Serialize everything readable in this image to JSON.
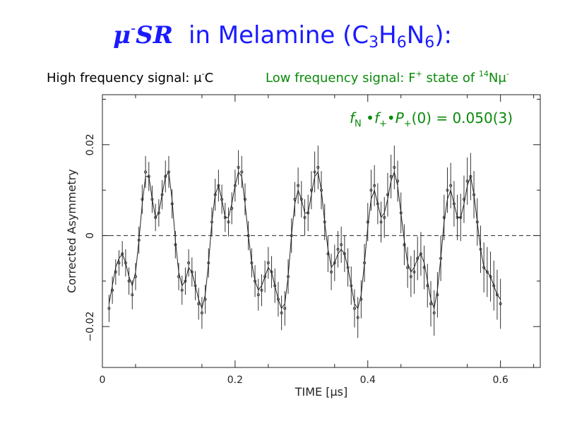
{
  "header": {
    "title_mu": "μ",
    "title_minus": "-",
    "title_sr": "SR",
    "title_rest_1": "in Melamine (C",
    "title_sub_1": "3",
    "title_rest_2": "H",
    "title_sub_2": "6",
    "title_rest_3": "N",
    "title_sub_3": "6",
    "title_rest_4": "):",
    "high_label": "High frequency signal:  μ",
    "high_sup": "-",
    "high_tail": "C",
    "low_label": "Low frequency signal:  F",
    "low_sup_plus": "+",
    "low_mid": " state of ",
    "low_sup_14": "14",
    "low_tail": "Nμ",
    "low_sup_minus": "-",
    "formula": {
      "f": "f",
      "sub_N": "N",
      "dot1": " •",
      "f2": "f",
      "sub_plus1": "+",
      "dot2": "•",
      "P": "P",
      "sub_plus2": "+",
      "tail": "(0) = 0.050(3)"
    }
  },
  "colors": {
    "title_blue": "#1a1aff",
    "green": "#0a8a0a",
    "axis": "#222222"
  },
  "chart_data": {
    "type": "scatter",
    "xlabel": "TIME  [μs]",
    "ylabel": "Corrected Asymmetry",
    "xlim": [
      0,
      0.66
    ],
    "ylim": [
      -0.029,
      0.031
    ],
    "xticks": [
      0,
      0.2,
      0.4,
      0.6
    ],
    "xtick_labels": [
      "0",
      "0.2",
      "0.4",
      "0.6"
    ],
    "yticks": [
      -0.02,
      0,
      0.02
    ],
    "ytick_labels": [
      "−0.02",
      "0",
      "0.02"
    ],
    "zero_line": "dashed",
    "series": [
      {
        "style": "points-with-errorbars",
        "x": [
          0.01,
          0.015,
          0.02,
          0.025,
          0.03,
          0.035,
          0.04,
          0.045,
          0.05,
          0.055,
          0.06,
          0.065,
          0.07,
          0.075,
          0.08,
          0.085,
          0.09,
          0.095,
          0.1,
          0.105,
          0.11,
          0.115,
          0.12,
          0.125,
          0.13,
          0.135,
          0.14,
          0.145,
          0.15,
          0.155,
          0.16,
          0.165,
          0.17,
          0.175,
          0.18,
          0.185,
          0.19,
          0.195,
          0.2,
          0.205,
          0.21,
          0.215,
          0.22,
          0.225,
          0.23,
          0.235,
          0.24,
          0.245,
          0.25,
          0.255,
          0.26,
          0.265,
          0.27,
          0.275,
          0.28,
          0.285,
          0.29,
          0.295,
          0.3,
          0.305,
          0.31,
          0.315,
          0.32,
          0.325,
          0.33,
          0.335,
          0.34,
          0.345,
          0.35,
          0.355,
          0.36,
          0.365,
          0.37,
          0.375,
          0.38,
          0.385,
          0.39,
          0.395,
          0.4,
          0.405,
          0.41,
          0.415,
          0.42,
          0.425,
          0.43,
          0.435,
          0.44,
          0.445,
          0.45,
          0.455,
          0.46,
          0.465,
          0.47,
          0.475,
          0.48,
          0.485,
          0.49,
          0.495,
          0.5,
          0.505,
          0.51,
          0.515,
          0.52,
          0.525,
          0.53,
          0.535,
          0.54,
          0.545,
          0.55,
          0.555,
          0.56,
          0.565,
          0.57,
          0.575,
          0.58,
          0.585,
          0.59,
          0.595,
          0.6
        ],
        "y": [
          -0.016,
          -0.012,
          -0.008,
          -0.006,
          -0.004,
          -0.006,
          -0.01,
          -0.013,
          -0.009,
          -0.001,
          0.008,
          0.014,
          0.013,
          0.008,
          0.004,
          0.005,
          0.009,
          0.013,
          0.014,
          0.007,
          -0.002,
          -0.009,
          -0.012,
          -0.01,
          -0.006,
          -0.008,
          -0.011,
          -0.015,
          -0.017,
          -0.014,
          -0.006,
          0.003,
          0.009,
          0.011,
          0.008,
          0.004,
          0.003,
          0.006,
          0.011,
          0.015,
          0.014,
          0.008,
          0.0,
          -0.006,
          -0.01,
          -0.013,
          -0.012,
          -0.009,
          -0.006,
          -0.008,
          -0.011,
          -0.014,
          -0.017,
          -0.016,
          -0.009,
          0.0,
          0.008,
          0.011,
          0.008,
          0.004,
          0.005,
          0.01,
          0.014,
          0.015,
          0.01,
          0.003,
          -0.004,
          -0.008,
          -0.006,
          -0.003,
          -0.002,
          -0.004,
          -0.007,
          -0.011,
          -0.016,
          -0.018,
          -0.014,
          -0.006,
          0.003,
          0.01,
          0.011,
          0.007,
          0.003,
          0.004,
          0.009,
          0.013,
          0.015,
          0.012,
          0.005,
          -0.002,
          -0.007,
          -0.009,
          -0.008,
          -0.005,
          -0.004,
          -0.007,
          -0.011,
          -0.015,
          -0.017,
          -0.013,
          -0.005,
          0.004,
          0.01,
          0.011,
          0.007,
          0.004,
          0.004,
          0.008,
          0.012,
          0.013,
          0.009,
          0.003,
          -0.003,
          -0.007,
          -0.008,
          -0.009,
          -0.011,
          -0.013,
          -0.015
        ],
        "err": [
          0.003,
          0.003,
          0.0028,
          0.0028,
          0.0028,
          0.003,
          0.003,
          0.0032,
          0.003,
          0.003,
          0.0032,
          0.0035,
          0.0032,
          0.003,
          0.003,
          0.003,
          0.0032,
          0.0035,
          0.0035,
          0.0032,
          0.003,
          0.003,
          0.0032,
          0.003,
          0.003,
          0.0032,
          0.0032,
          0.0035,
          0.0035,
          0.0032,
          0.0032,
          0.0032,
          0.0035,
          0.0035,
          0.0032,
          0.0032,
          0.0032,
          0.0035,
          0.0035,
          0.0038,
          0.0035,
          0.0035,
          0.0032,
          0.0032,
          0.0035,
          0.0035,
          0.0035,
          0.0035,
          0.0035,
          0.0035,
          0.0038,
          0.0038,
          0.0038,
          0.0038,
          0.0038,
          0.0038,
          0.0038,
          0.004,
          0.004,
          0.004,
          0.004,
          0.0042,
          0.0045,
          0.0048,
          0.0042,
          0.004,
          0.004,
          0.004,
          0.004,
          0.004,
          0.004,
          0.004,
          0.0042,
          0.0042,
          0.0042,
          0.0045,
          0.0042,
          0.0042,
          0.0042,
          0.0045,
          0.0045,
          0.0045,
          0.0045,
          0.0045,
          0.0048,
          0.0048,
          0.0048,
          0.0045,
          0.0045,
          0.0045,
          0.0045,
          0.0045,
          0.0048,
          0.0048,
          0.0048,
          0.0048,
          0.0048,
          0.005,
          0.005,
          0.005,
          0.005,
          0.005,
          0.005,
          0.005,
          0.005,
          0.005,
          0.0052,
          0.0052,
          0.0052,
          0.0052,
          0.0052,
          0.0052,
          0.0052,
          0.0055,
          0.0055,
          0.0055,
          0.0055,
          0.0055,
          0.0055
        ]
      },
      {
        "style": "fit-line",
        "x": [
          0.01,
          0.015,
          0.02,
          0.025,
          0.03,
          0.035,
          0.04,
          0.045,
          0.05,
          0.055,
          0.06,
          0.065,
          0.07,
          0.075,
          0.08,
          0.085,
          0.09,
          0.095,
          0.1,
          0.105,
          0.11,
          0.115,
          0.12,
          0.125,
          0.13,
          0.135,
          0.14,
          0.145,
          0.15,
          0.155,
          0.16,
          0.165,
          0.17,
          0.175,
          0.18,
          0.185,
          0.19,
          0.195,
          0.2,
          0.205,
          0.21,
          0.215,
          0.22,
          0.225,
          0.23,
          0.235,
          0.24,
          0.245,
          0.25,
          0.255,
          0.26,
          0.265,
          0.27,
          0.275,
          0.28,
          0.285,
          0.29,
          0.295,
          0.3,
          0.305,
          0.31,
          0.315,
          0.32,
          0.325,
          0.33,
          0.335,
          0.34,
          0.345,
          0.35,
          0.355,
          0.36,
          0.365,
          0.37,
          0.375,
          0.38,
          0.385,
          0.39,
          0.395,
          0.4,
          0.405,
          0.41,
          0.415,
          0.42,
          0.425,
          0.43,
          0.435,
          0.44,
          0.445,
          0.45,
          0.455,
          0.46,
          0.465,
          0.47,
          0.475,
          0.48,
          0.485,
          0.49,
          0.495,
          0.5,
          0.505,
          0.51,
          0.515,
          0.52,
          0.525,
          0.53,
          0.535,
          0.54,
          0.545,
          0.55,
          0.555,
          0.56,
          0.565,
          0.57,
          0.575,
          0.58,
          0.585,
          0.59,
          0.595,
          0.6
        ],
        "y": [
          -0.015,
          -0.011,
          -0.007,
          -0.005,
          -0.004,
          -0.006,
          -0.009,
          -0.011,
          -0.008,
          -0.001,
          0.007,
          0.013,
          0.013,
          0.008,
          0.004,
          0.005,
          0.009,
          0.013,
          0.014,
          0.008,
          -0.001,
          -0.008,
          -0.011,
          -0.01,
          -0.007,
          -0.008,
          -0.011,
          -0.014,
          -0.016,
          -0.013,
          -0.006,
          0.003,
          0.009,
          0.011,
          0.008,
          0.004,
          0.004,
          0.007,
          0.011,
          0.014,
          0.013,
          0.007,
          0.0,
          -0.006,
          -0.01,
          -0.012,
          -0.011,
          -0.009,
          -0.007,
          -0.008,
          -0.011,
          -0.014,
          -0.016,
          -0.015,
          -0.009,
          0.0,
          0.007,
          0.01,
          0.008,
          0.005,
          0.005,
          0.009,
          0.013,
          0.014,
          0.01,
          0.003,
          -0.003,
          -0.007,
          -0.006,
          -0.004,
          -0.003,
          -0.004,
          -0.007,
          -0.011,
          -0.015,
          -0.016,
          -0.013,
          -0.006,
          0.002,
          0.008,
          0.01,
          0.007,
          0.004,
          0.005,
          0.008,
          0.012,
          0.014,
          0.011,
          0.005,
          -0.001,
          -0.006,
          -0.008,
          -0.007,
          -0.005,
          -0.004,
          -0.006,
          -0.01,
          -0.014,
          -0.016,
          -0.012,
          -0.005,
          0.003,
          0.008,
          0.01,
          0.007,
          0.004,
          0.004,
          0.007,
          0.011,
          0.013,
          0.009,
          0.003,
          -0.003,
          -0.007,
          -0.008,
          -0.009,
          -0.011,
          -0.013,
          -0.014
        ]
      }
    ]
  }
}
